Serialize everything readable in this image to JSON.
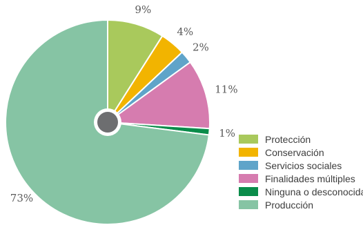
{
  "chart_data": {
    "type": "pie",
    "slices": [
      {
        "label": "Protección",
        "value": 9,
        "display": "9%",
        "color": "#a9c95c"
      },
      {
        "label": "Conservación",
        "value": 4,
        "display": "4%",
        "color": "#f2b400"
      },
      {
        "label": "Servicios sociales",
        "value": 2,
        "display": "2%",
        "color": "#5fa4c9"
      },
      {
        "label": "Finalidades múltiples",
        "value": 11,
        "display": "11%",
        "color": "#d67caf"
      },
      {
        "label": "Ninguna o desconocida",
        "value": 1,
        "display": "1%",
        "color": "#0a8c4a"
      },
      {
        "label": "Producción",
        "value": 73,
        "display": "73%",
        "color": "#86c4a4"
      }
    ],
    "legend_position": "bottom-right",
    "start_angle": "12 o'clock",
    "direction": "clockwise"
  }
}
